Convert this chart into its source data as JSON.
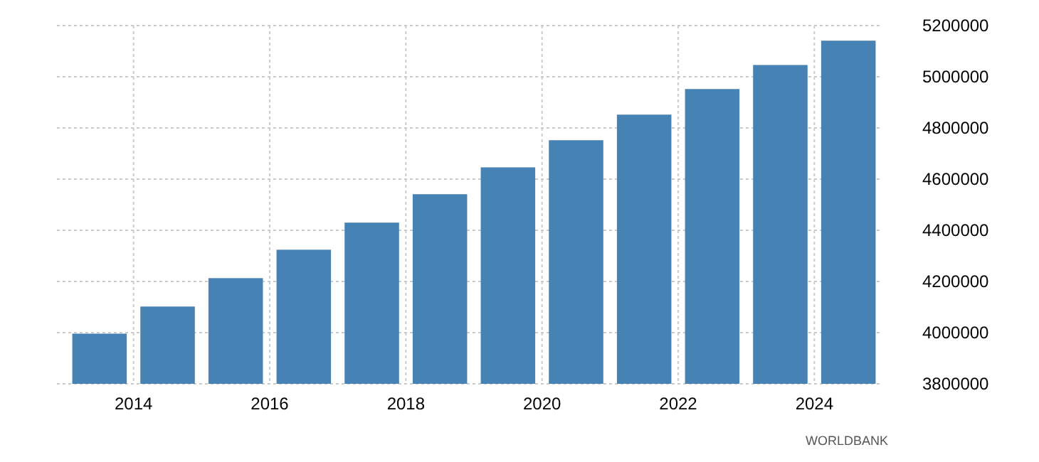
{
  "chart_data": {
    "type": "bar",
    "categories": [
      null,
      "2014",
      null,
      "2016",
      null,
      "2018",
      null,
      "2020",
      null,
      "2022",
      null,
      "2024"
    ],
    "values": [
      3996000,
      4102000,
      4213000,
      4324000,
      4430000,
      4541000,
      4646000,
      4752000,
      4852000,
      4952000,
      5046000,
      5141000
    ],
    "color": "#4682b4",
    "ylim": [
      3800000,
      5200000
    ],
    "yticks": [
      3800000,
      4000000,
      4200000,
      4400000,
      4600000,
      4800000,
      5000000,
      5200000
    ],
    "grid": true,
    "annotations": [
      "WORLDBANK"
    ]
  }
}
